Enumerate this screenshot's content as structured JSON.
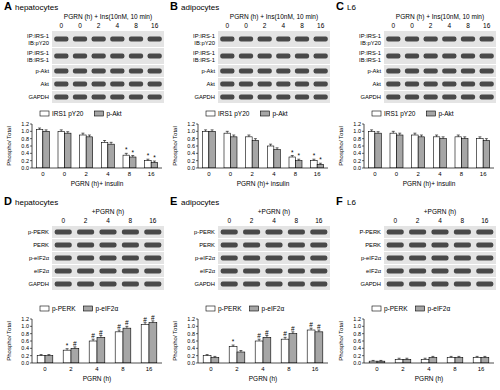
{
  "chart_data": [
    {
      "type": "bar",
      "label": "A",
      "title": "hepatocytes",
      "header": "PGRN (h) + Ins(10nM, 10 min)",
      "lanes": [
        "0",
        "0",
        "2",
        "4",
        "8",
        "16"
      ],
      "blot_rows": [
        [
          "IP:IRS-1",
          "IB:pY20"
        ],
        [
          "IP:IRS-1",
          "IB:IRS-1"
        ],
        [
          "p-Akt"
        ],
        [
          "Akt"
        ],
        [
          "GAPDH"
        ]
      ],
      "categories": [
        "0",
        "0",
        "2",
        "4",
        "8",
        "16"
      ],
      "x_label": "PGRN (h)+ insulin",
      "y_label": "Phospho/ Total",
      "series": [
        {
          "name": "IRS1 pY20",
          "color": "#ffffff",
          "values": [
            1.05,
            1.0,
            0.9,
            0.7,
            0.35,
            0.2
          ],
          "errors": [
            0.04,
            0.04,
            0.05,
            0.05,
            0.05,
            0.04
          ]
        },
        {
          "name": "p-Akt",
          "color": "#a6a6a6",
          "values": [
            1.0,
            0.95,
            0.85,
            0.65,
            0.3,
            0.15
          ],
          "errors": [
            0.04,
            0.04,
            0.05,
            0.05,
            0.04,
            0.04
          ]
        }
      ],
      "ylim": [
        0,
        1.2
      ],
      "yticks": [
        {
          "value": 0,
          "label": "0.0"
        },
        0.2,
        0.4,
        0.6,
        0.8,
        {
          "value": 1,
          "label": "1.0"
        },
        1.2
      ],
      "legend": "top",
      "grid": false,
      "annotations": [
        {
          "text": "*",
          "series": 0,
          "index": 4
        },
        {
          "text": "*",
          "series": 1,
          "index": 4
        },
        {
          "text": "*",
          "series": 0,
          "index": 5
        },
        {
          "text": "*",
          "series": 1,
          "index": 5
        }
      ]
    },
    {
      "type": "bar",
      "label": "B",
      "title": "adipocytes",
      "header": "PGRN (h) + Ins(10nM, 10 min)",
      "lanes": [
        "0",
        "0",
        "2",
        "4",
        "8",
        "16"
      ],
      "blot_rows": [
        [
          "IP:IRS-1",
          "IB:pY20"
        ],
        [
          "IP:IRS-1",
          "IB:IRS-1"
        ],
        [
          "p-Akt"
        ],
        [
          "Akt"
        ],
        [
          "GAPDH"
        ]
      ],
      "categories": [
        "0",
        "0",
        "2",
        "4",
        "8",
        "16"
      ],
      "x_label": "PGRN (h)+ insulin",
      "y_label": "Phospho/ Total",
      "series": [
        {
          "name": "IRS1 pY20",
          "color": "#ffffff",
          "values": [
            1.0,
            0.95,
            0.85,
            0.6,
            0.3,
            0.2
          ],
          "errors": [
            0.04,
            0.05,
            0.05,
            0.05,
            0.04,
            0.04
          ]
        },
        {
          "name": "p-Akt",
          "color": "#a6a6a6",
          "values": [
            1.0,
            0.85,
            0.75,
            0.5,
            0.2,
            0.1
          ],
          "errors": [
            0.04,
            0.05,
            0.05,
            0.05,
            0.04,
            0.03
          ]
        }
      ],
      "ylim": [
        0,
        1.2
      ],
      "yticks": [
        {
          "value": 0,
          "label": "0.0"
        },
        0.2,
        0.4,
        0.6,
        0.8,
        {
          "value": 1,
          "label": "1.0"
        },
        1.2
      ],
      "legend": "top",
      "grid": false,
      "annotations": [
        {
          "text": "*",
          "series": 0,
          "index": 4
        },
        {
          "text": "*",
          "series": 1,
          "index": 4
        },
        {
          "text": "*",
          "series": 0,
          "index": 5
        },
        {
          "text": "*",
          "series": 1,
          "index": 5
        }
      ]
    },
    {
      "type": "bar",
      "label": "C",
      "title": "L6",
      "header": "PGRN (h) + Ins(10nM, 10 min)",
      "lanes": [
        "0",
        "0",
        "2",
        "4",
        "8",
        "16"
      ],
      "blot_rows": [
        [
          "IP:IRS-1",
          "IB:pY20"
        ],
        [
          "IP:IRS-1",
          "IB:IRS-1"
        ],
        [
          "p-Akt"
        ],
        [
          "Akt"
        ],
        [
          "GAPDH"
        ]
      ],
      "categories": [
        "0",
        "0",
        "2",
        "4",
        "8",
        "16"
      ],
      "x_label": "PGRN (h)+ insulin",
      "y_label": "Phospho/ Total",
      "series": [
        {
          "name": "IRS1 pY20",
          "color": "#ffffff",
          "values": [
            1.0,
            0.95,
            0.9,
            0.85,
            0.85,
            0.8
          ],
          "errors": [
            0.04,
            0.05,
            0.05,
            0.05,
            0.05,
            0.05
          ]
        },
        {
          "name": "p-Akt",
          "color": "#a6a6a6",
          "values": [
            0.95,
            0.9,
            0.85,
            0.8,
            0.8,
            0.75
          ],
          "errors": [
            0.04,
            0.05,
            0.05,
            0.05,
            0.05,
            0.05
          ]
        }
      ],
      "ylim": [
        0,
        1.2
      ],
      "yticks": [
        {
          "value": 0,
          "label": "0.0"
        },
        0.2,
        0.4,
        0.6,
        0.8,
        {
          "value": 1,
          "label": "1.0"
        },
        1.2
      ],
      "legend": "top",
      "grid": false,
      "annotations": []
    },
    {
      "type": "bar",
      "label": "D",
      "title": "hepatocytes",
      "header": "+PGRN (h)",
      "lanes": [
        "0",
        "2",
        "4",
        "8",
        "16"
      ],
      "blot_rows": [
        [
          "p-PERK"
        ],
        [
          "PERK"
        ],
        [
          "p-eIF2α"
        ],
        [
          "eIF2α"
        ],
        [
          "GAPDH"
        ]
      ],
      "categories": [
        "0",
        "2",
        "4",
        "8",
        "16"
      ],
      "x_label": "PGRN (h)",
      "y_label": "Phospho/ Total",
      "series": [
        {
          "name": "p-PERK",
          "color": "#ffffff",
          "values": [
            0.2,
            0.35,
            0.6,
            0.85,
            1.05
          ],
          "errors": [
            0.03,
            0.04,
            0.05,
            0.05,
            0.05
          ]
        },
        {
          "name": "p-eIF2α",
          "color": "#a6a6a6",
          "values": [
            0.2,
            0.4,
            0.7,
            0.95,
            1.1
          ],
          "errors": [
            0.03,
            0.04,
            0.05,
            0.05,
            0.05
          ]
        }
      ],
      "ylim": [
        0,
        1.2
      ],
      "yticks": [
        {
          "value": 0,
          "label": "0.0"
        },
        0.2,
        0.4,
        0.6,
        0.8,
        {
          "value": 1,
          "label": "1.0"
        },
        1.2
      ],
      "legend": "top",
      "grid": false,
      "annotations": [
        {
          "text": "*",
          "series": 0,
          "index": 1
        },
        {
          "text": "#",
          "series": 1,
          "index": 1
        },
        {
          "text": "#",
          "series": 0,
          "index": 2
        },
        {
          "text": "#",
          "series": 1,
          "index": 2
        },
        {
          "text": "#",
          "series": 0,
          "index": 3
        },
        {
          "text": "#",
          "series": 1,
          "index": 3
        },
        {
          "text": "#",
          "series": 0,
          "index": 4
        },
        {
          "text": "#",
          "series": 1,
          "index": 4
        }
      ]
    },
    {
      "type": "bar",
      "label": "E",
      "title": "adipocytes",
      "header": "+PGRN (h)",
      "lanes": [
        "0",
        "2",
        "4",
        "8",
        "16"
      ],
      "blot_rows": [
        [
          "p-PERK"
        ],
        [
          "PERK"
        ],
        [
          "p-eIF2α"
        ],
        [
          "eIF2α"
        ],
        [
          "GAPDH"
        ]
      ],
      "categories": [
        "0",
        "2",
        "4",
        "8",
        "16"
      ],
      "x_label": "PGRN (h)",
      "y_label": "Phospho/ Total",
      "series": [
        {
          "name": "p-PERK",
          "color": "#ffffff",
          "values": [
            0.2,
            0.45,
            0.6,
            0.65,
            0.9
          ],
          "errors": [
            0.03,
            0.04,
            0.05,
            0.05,
            0.05
          ]
        },
        {
          "name": "p-eIF2α",
          "color": "#a6a6a6",
          "values": [
            0.15,
            0.3,
            0.7,
            0.8,
            0.85
          ],
          "errors": [
            0.03,
            0.04,
            0.05,
            0.05,
            0.05
          ]
        }
      ],
      "ylim": [
        0,
        1.2
      ],
      "yticks": [
        {
          "value": 0,
          "label": "0.0"
        },
        0.2,
        0.4,
        0.6,
        0.8,
        {
          "value": 1,
          "label": "1.0"
        },
        1.2
      ],
      "legend": "top",
      "grid": false,
      "annotations": [
        {
          "text": "*",
          "series": 0,
          "index": 1
        },
        {
          "text": "#",
          "series": 0,
          "index": 2
        },
        {
          "text": "#",
          "series": 1,
          "index": 2
        },
        {
          "text": "#",
          "series": 0,
          "index": 3
        },
        {
          "text": "#",
          "series": 1,
          "index": 3
        },
        {
          "text": "#",
          "series": 0,
          "index": 4
        },
        {
          "text": "#",
          "series": 1,
          "index": 4
        }
      ]
    },
    {
      "type": "bar",
      "label": "F",
      "title": "L6",
      "header": "+PGRN (h)",
      "lanes": [
        "0",
        "2",
        "4",
        "8",
        "16"
      ],
      "blot_rows": [
        [
          "P-PERK"
        ],
        [
          "PERK"
        ],
        [
          "p-eIF2α"
        ],
        [
          "eIF2α"
        ],
        [
          "GAPDH"
        ]
      ],
      "categories": [
        "0",
        "2",
        "4",
        "8",
        "16"
      ],
      "x_label": "PGRN (h)",
      "y_label": "Phospho/ Total",
      "series": [
        {
          "name": "p-PERK",
          "color": "#ffffff",
          "values": [
            0.05,
            0.1,
            0.1,
            0.15,
            0.15
          ],
          "errors": [
            0.02,
            0.03,
            0.03,
            0.03,
            0.03
          ]
        },
        {
          "name": "p-eIF2α",
          "color": "#a6a6a6",
          "values": [
            0.05,
            0.1,
            0.15,
            0.15,
            0.15
          ],
          "errors": [
            0.02,
            0.03,
            0.03,
            0.03,
            0.03
          ]
        }
      ],
      "ylim": [
        0,
        1.2
      ],
      "yticks": [
        {
          "value": 0,
          "label": "0.0"
        },
        0.2,
        0.4,
        0.6,
        0.8,
        {
          "value": 1,
          "label": "1.0"
        },
        1.2
      ],
      "legend": "top",
      "grid": false,
      "annotations": []
    }
  ]
}
